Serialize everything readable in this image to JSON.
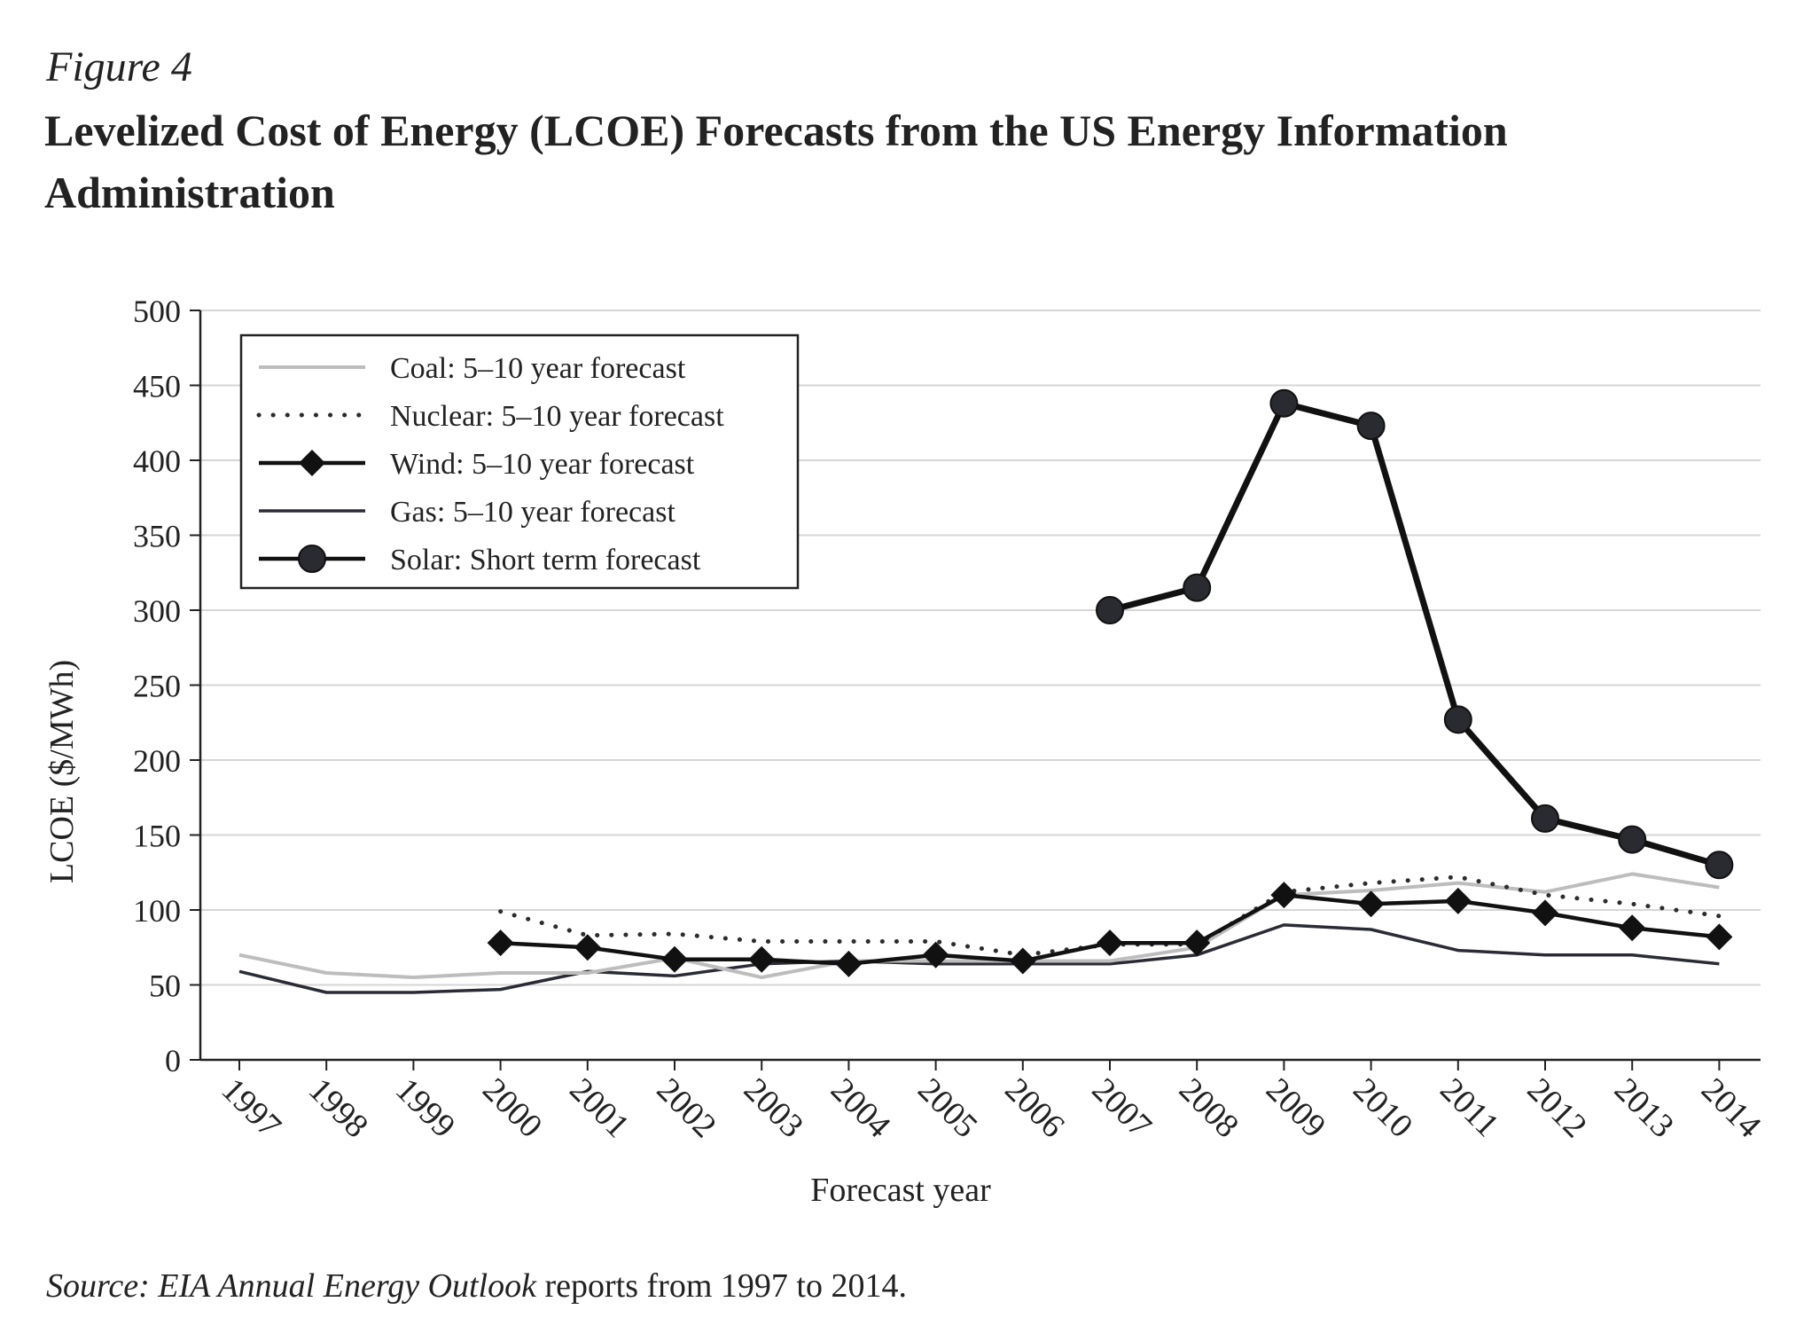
{
  "figure_label": "Figure 4",
  "title": "Levelized Cost of Energy (LCOE) Forecasts from the US Energy Information Administration",
  "source": {
    "italic_part": "Source: EIA Annual Energy Outlook",
    "rest": " reports from 1997 to 2014."
  },
  "chart_data": {
    "type": "line",
    "xlabel": "Forecast year",
    "ylabel": "LCOE ($/MWh)",
    "ylim": [
      0,
      500
    ],
    "yticks": [
      0,
      50,
      100,
      150,
      200,
      250,
      300,
      350,
      400,
      450,
      500
    ],
    "categories": [
      "1997",
      "1998",
      "1999",
      "2000",
      "2001",
      "2002",
      "2003",
      "2004",
      "2005",
      "2006",
      "2007",
      "2008",
      "2009",
      "2010",
      "2011",
      "2012",
      "2013",
      "2014"
    ],
    "grid": "horizontal",
    "legend_position": "top-left",
    "series": [
      {
        "name": "Coal: 5–10 year forecast",
        "style": "solid-light",
        "color": "#bdbdbd",
        "values": [
          70,
          58,
          55,
          58,
          58,
          68,
          55,
          66,
          66,
          66,
          66,
          75,
          110,
          113,
          118,
          112,
          124,
          115
        ]
      },
      {
        "name": "Nuclear: 5–10 year forecast",
        "style": "dotted",
        "color": "#2b2b30",
        "values": [
          null,
          null,
          null,
          99,
          83,
          84,
          79,
          79,
          79,
          70,
          77,
          77,
          112,
          118,
          122,
          110,
          104,
          96
        ]
      },
      {
        "name": "Wind: 5–10 year forecast",
        "style": "diamond",
        "color": "#111111",
        "values": [
          null,
          null,
          null,
          78,
          75,
          67,
          67,
          64,
          70,
          66,
          78,
          78,
          110,
          104,
          106,
          98,
          88,
          82
        ]
      },
      {
        "name": "Gas: 5–10 year forecast",
        "style": "solid-dark",
        "color": "#2b2b35",
        "values": [
          59,
          45,
          45,
          47,
          59,
          56,
          64,
          66,
          64,
          64,
          64,
          70,
          90,
          87,
          73,
          70,
          70,
          64
        ]
      },
      {
        "name": "Solar: Short term forecast",
        "style": "circle",
        "color": "#111111",
        "values": [
          null,
          null,
          null,
          null,
          null,
          null,
          null,
          null,
          null,
          null,
          300,
          315,
          438,
          423,
          227,
          161,
          147,
          130
        ]
      }
    ]
  }
}
